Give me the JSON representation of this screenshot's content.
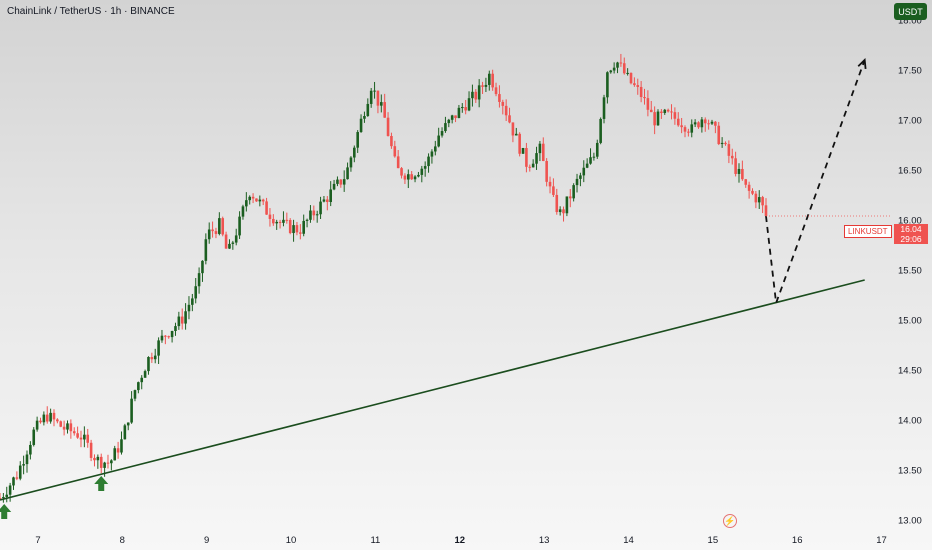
{
  "header": {
    "title": "ChainLink / TetherUS · 1h · BINANCE"
  },
  "currency_badge": "USDT",
  "price_tag": {
    "symbol": "LINKUSDT",
    "price": "16.04",
    "countdown": "29:06"
  },
  "colors": {
    "up": "#1b5e20",
    "down": "#ef5350",
    "trendline": "#1b4d1e",
    "arrow": "#2e7d32",
    "background_top": "#d3d3d3",
    "background_bottom": "#f7f7f7"
  },
  "icons": {
    "bottom_logo": "lightning-icon",
    "support_markers": "up-arrow-icon"
  },
  "chart_data": {
    "type": "candlestick",
    "y_axis": {
      "position": "right",
      "range": [
        12.9,
        18.2
      ],
      "ticks": [
        "13.00",
        "13.50",
        "14.00",
        "14.50",
        "15.00",
        "15.50",
        "16.00",
        "16.50",
        "17.00",
        "17.50",
        "18.00"
      ]
    },
    "x_axis": {
      "range_days": [
        6.55,
        17.1
      ],
      "ticks": [
        {
          "label": "7",
          "value": 7,
          "bold": false
        },
        {
          "label": "8",
          "value": 8,
          "bold": false
        },
        {
          "label": "9",
          "value": 9,
          "bold": false
        },
        {
          "label": "10",
          "value": 10,
          "bold": false
        },
        {
          "label": "11",
          "value": 11,
          "bold": false
        },
        {
          "label": "12",
          "value": 12,
          "bold": true
        },
        {
          "label": "13",
          "value": 13,
          "bold": false
        },
        {
          "label": "14",
          "value": 14,
          "bold": false
        },
        {
          "label": "15",
          "value": 15,
          "bold": false
        },
        {
          "label": "16",
          "value": 16,
          "bold": false
        },
        {
          "label": "17",
          "value": 17,
          "bold": false
        }
      ]
    },
    "price_path": [
      [
        6.55,
        13.22
      ],
      [
        6.75,
        13.45
      ],
      [
        6.95,
        13.88
      ],
      [
        7.1,
        14.05
      ],
      [
        7.3,
        13.92
      ],
      [
        7.5,
        13.85
      ],
      [
        7.7,
        13.6
      ],
      [
        7.85,
        13.57
      ],
      [
        8.0,
        13.8
      ],
      [
        8.15,
        14.3
      ],
      [
        8.3,
        14.6
      ],
      [
        8.5,
        14.85
      ],
      [
        8.7,
        15.0
      ],
      [
        8.9,
        15.35
      ],
      [
        9.0,
        15.85
      ],
      [
        9.15,
        15.95
      ],
      [
        9.25,
        15.65
      ],
      [
        9.4,
        16.0
      ],
      [
        9.5,
        16.3
      ],
      [
        9.7,
        16.1
      ],
      [
        9.9,
        15.95
      ],
      [
        10.1,
        15.9
      ],
      [
        10.3,
        16.1
      ],
      [
        10.5,
        16.3
      ],
      [
        10.65,
        16.45
      ],
      [
        10.8,
        16.9
      ],
      [
        10.95,
        17.35
      ],
      [
        11.1,
        17.05
      ],
      [
        11.25,
        16.5
      ],
      [
        11.4,
        16.45
      ],
      [
        11.6,
        16.55
      ],
      [
        11.75,
        16.85
      ],
      [
        11.9,
        17.0
      ],
      [
        12.05,
        17.15
      ],
      [
        12.2,
        17.25
      ],
      [
        12.35,
        17.45
      ],
      [
        12.5,
        17.2
      ],
      [
        12.65,
        16.85
      ],
      [
        12.8,
        16.55
      ],
      [
        12.95,
        16.7
      ],
      [
        13.1,
        16.2
      ],
      [
        13.2,
        16.05
      ],
      [
        13.4,
        16.4
      ],
      [
        13.6,
        16.65
      ],
      [
        13.75,
        17.5
      ],
      [
        13.85,
        17.6
      ],
      [
        14.0,
        17.4
      ],
      [
        14.15,
        17.25
      ],
      [
        14.3,
        17.0
      ],
      [
        14.45,
        17.05
      ],
      [
        14.6,
        17.0
      ],
      [
        14.75,
        16.9
      ],
      [
        14.9,
        17.05
      ],
      [
        15.05,
        16.85
      ],
      [
        15.25,
        16.55
      ],
      [
        15.4,
        16.3
      ],
      [
        15.55,
        16.2
      ],
      [
        15.63,
        16.04
      ]
    ],
    "trendline": {
      "start": {
        "day": 6.55,
        "price": 13.2
      },
      "end": {
        "day": 16.8,
        "price": 15.4
      }
    },
    "projection": [
      {
        "day": 15.63,
        "price": 16.04
      },
      {
        "day": 15.75,
        "price": 15.17
      },
      {
        "day": 16.8,
        "price": 17.6
      }
    ],
    "support_markers": [
      {
        "day": 6.6,
        "price": 13.2
      },
      {
        "day": 7.75,
        "price": 13.48
      }
    ],
    "last_price": 16.04
  }
}
